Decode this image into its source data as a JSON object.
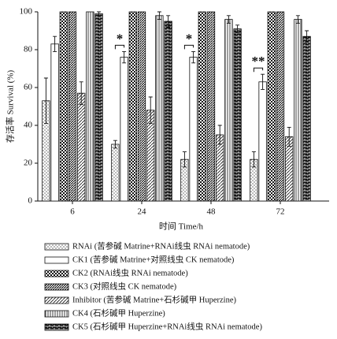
{
  "chart_data": {
    "type": "bar",
    "ylabel": "存活率 Survival (%)",
    "xlabel": "时间 Time/h",
    "categories": [
      "6",
      "24",
      "48",
      "72"
    ],
    "ylim": [
      0,
      100
    ],
    "yticks": [
      0,
      20,
      40,
      60,
      80,
      100
    ],
    "series": [
      {
        "name": "RNAi (苦参碱 Matrine+RNAi线虫 RNAi nematode)",
        "pattern": "dots",
        "color": "#111111",
        "values": [
          53,
          30,
          22,
          22
        ],
        "errors": [
          12,
          2,
          4,
          4
        ]
      },
      {
        "name": "CK1 (苦参碱 Matrine+对照线虫 CK nematode)",
        "pattern": "blank",
        "color": "#111111",
        "values": [
          83,
          76,
          76,
          63
        ],
        "errors": [
          4,
          3,
          3,
          4
        ]
      },
      {
        "name": "CK2 (RNAi线虫 RNAi nematode)",
        "pattern": "checker",
        "color": "#111111",
        "values": [
          100,
          100,
          100,
          100
        ],
        "errors": [
          0,
          0,
          0,
          0
        ]
      },
      {
        "name": "CK3 (对照线虫 CK nematode)",
        "pattern": "diagdense",
        "color": "#111111",
        "values": [
          100,
          100,
          100,
          100
        ],
        "errors": [
          0,
          0,
          0,
          0
        ]
      },
      {
        "name": "Inhibitor (苦参碱 Matrine+石杉碱甲 Huperzine)",
        "pattern": "diag",
        "color": "#111111",
        "values": [
          57,
          48,
          35,
          34
        ],
        "errors": [
          6,
          7,
          5,
          5
        ]
      },
      {
        "name": "CK4 (石杉碱甲 Huperzine)",
        "pattern": "vertical",
        "color": "#111111",
        "values": [
          100,
          98,
          96,
          96
        ],
        "errors": [
          0,
          2,
          2,
          2
        ]
      },
      {
        "name": "CK5 (石杉碱甲 Huperzine+RNAi线虫 RNAi nematode)",
        "pattern": "brick",
        "color": "#111111",
        "values": [
          99,
          95,
          91,
          87
        ],
        "errors": [
          1,
          3,
          2,
          3
        ]
      }
    ],
    "annotations": [
      {
        "text": "*",
        "category": 1
      },
      {
        "text": "*",
        "category": 2
      },
      {
        "text": "**",
        "category": 3
      }
    ]
  }
}
